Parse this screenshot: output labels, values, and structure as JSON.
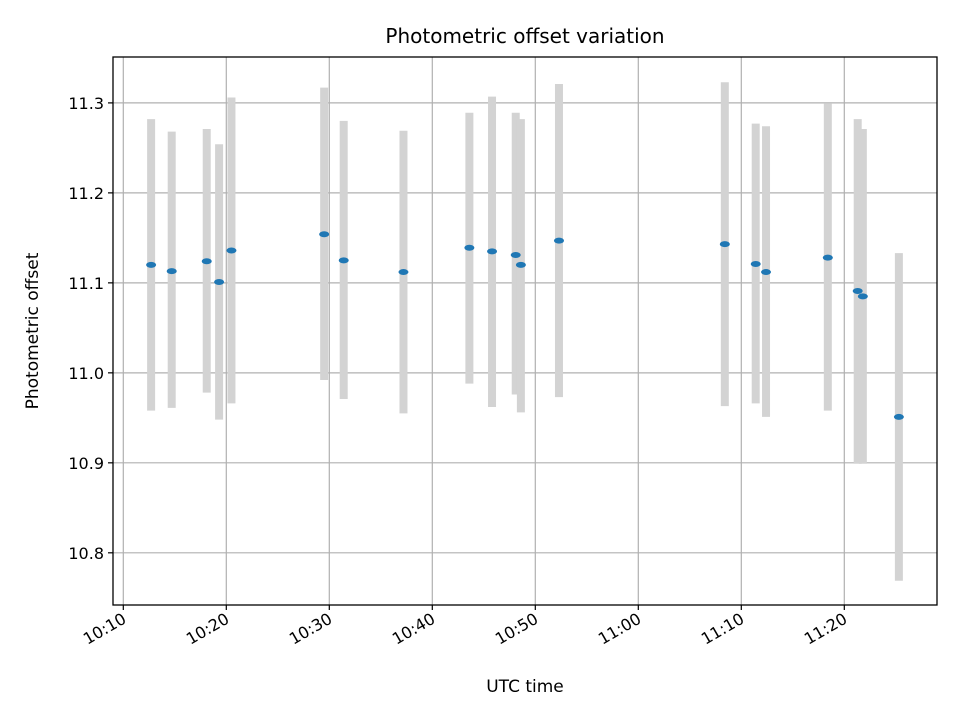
{
  "chart_data": {
    "type": "scatter",
    "title": "Photometric offset variation",
    "xlabel": "UTC time",
    "ylabel": "Photometric offset",
    "x_ticks": [
      "10:10",
      "10:20",
      "10:30",
      "10:40",
      "10:50",
      "11:00",
      "11:10",
      "11:20"
    ],
    "y_ticks": [
      "10.8",
      "10.9",
      "11.0",
      "11.1",
      "11.2",
      "11.3"
    ],
    "xlim": [
      "10:09",
      "11:29"
    ],
    "ylim": [
      10.742,
      11.351
    ],
    "grid": true,
    "colors": {
      "point": "#1f77b4",
      "errorbar": "#d3d3d3",
      "grid": "#b0b0b0"
    },
    "series": [
      {
        "x": [
          "10:12:42",
          "10:14:42",
          "10:18:06",
          "10:19:18",
          "10:20:30",
          "10:29:30",
          "10:31:24",
          "10:37:12",
          "10:43:36",
          "10:45:48",
          "10:48:06",
          "10:48:36",
          "10:52:18",
          "11:08:24",
          "11:11:24",
          "11:12:24",
          "11:18:24",
          "11:21:18",
          "11:21:48",
          "11:25:18"
        ],
        "y": [
          11.12,
          11.113,
          11.124,
          11.101,
          11.136,
          11.154,
          11.125,
          11.112,
          11.139,
          11.135,
          11.131,
          11.12,
          11.147,
          11.143,
          11.121,
          11.112,
          11.128,
          11.091,
          11.085,
          10.951
        ],
        "y_low": [
          10.958,
          10.961,
          10.978,
          10.948,
          10.966,
          10.992,
          10.971,
          10.955,
          10.988,
          10.962,
          10.976,
          10.956,
          10.973,
          10.963,
          10.966,
          10.951,
          10.958,
          10.899,
          10.899,
          10.769
        ],
        "y_high": [
          11.282,
          11.268,
          11.271,
          11.254,
          11.306,
          11.317,
          11.28,
          11.269,
          11.289,
          11.307,
          11.289,
          11.282,
          11.321,
          11.323,
          11.277,
          11.274,
          11.299,
          11.282,
          11.271,
          11.133
        ]
      }
    ]
  }
}
